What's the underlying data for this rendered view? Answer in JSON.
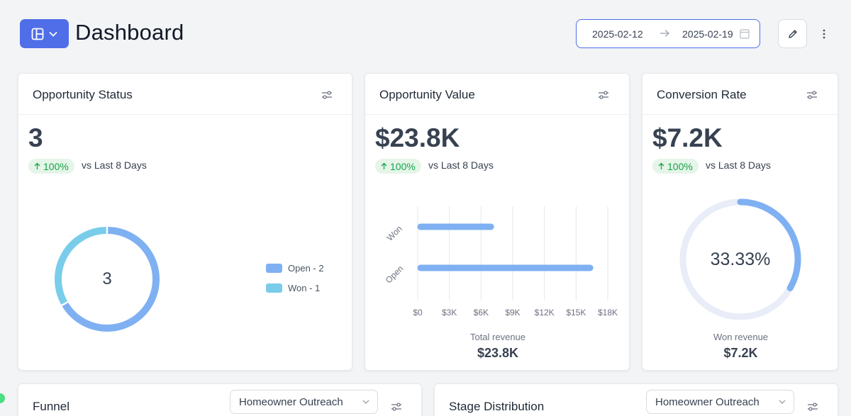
{
  "header": {
    "title": "Dashboard",
    "date_start": "2025-02-12",
    "date_end": "2025-02-19"
  },
  "icons": {
    "layout": "layout-panels-icon",
    "chevron": "chevron-down-icon",
    "arrow": "arrow-right-icon",
    "calendar": "calendar-icon",
    "edit": "pencil-icon",
    "more": "more-vertical-icon",
    "filter": "sliders-icon",
    "trend": "arrow-up-icon"
  },
  "colors": {
    "accent": "#4f6ee8",
    "open_series": "#7fb0f2",
    "won_series": "#79cdea",
    "badge_bg": "#e5f5e8",
    "badge_text": "#16a34a",
    "gauge_track": "#e8edf8",
    "gauge_fill": "#7fb0f2"
  },
  "cards": {
    "status": {
      "title": "Opportunity Status",
      "value": "3",
      "change": "100%",
      "compare": "vs Last 8 Days",
      "donut_center": "3",
      "legend": [
        {
          "label": "Open - 2"
        },
        {
          "label": "Won - 1"
        }
      ]
    },
    "value": {
      "title": "Opportunity Value",
      "value": "$23.8K",
      "change": "100%",
      "compare": "vs Last 8 Days",
      "footer_label": "Total revenue",
      "footer_value": "$23.8K"
    },
    "conversion": {
      "title": "Conversion Rate",
      "value": "$7.2K",
      "change": "100%",
      "compare": "vs Last 8 Days",
      "gauge_text": "33.33%",
      "gauge_fraction": 0.3333,
      "footer_label": "Won revenue",
      "footer_value": "$7.2K"
    },
    "funnel": {
      "title": "Funnel",
      "select": "Homeowner Outreach"
    },
    "stage": {
      "title": "Stage Distribution",
      "select": "Homeowner Outreach"
    }
  },
  "chart_data": [
    {
      "type": "pie",
      "title": "Opportunity Status",
      "categories": [
        "Open",
        "Won"
      ],
      "values": [
        2,
        1
      ]
    },
    {
      "type": "bar",
      "title": "Opportunity Value",
      "orientation": "horizontal",
      "categories": [
        "Won",
        "Open"
      ],
      "values": [
        7200,
        16600
      ],
      "xlim": [
        0,
        18000
      ],
      "xticks": [
        "$0",
        "$3K",
        "$6K",
        "$9K",
        "$12K",
        "$15K",
        "$18K"
      ],
      "grid": true
    }
  ]
}
